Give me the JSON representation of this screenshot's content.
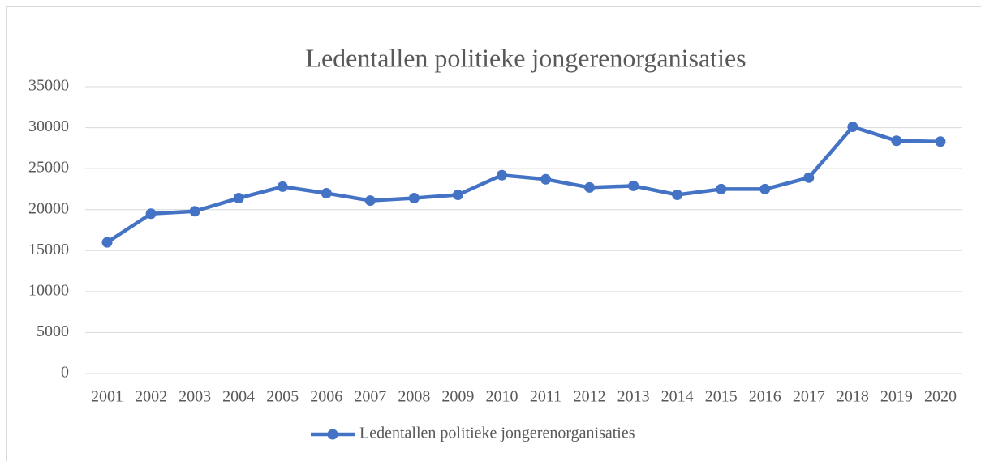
{
  "chart_data": {
    "type": "line",
    "title": "Ledentallen politieke jongerenorganisaties",
    "categories": [
      "2001",
      "2002",
      "2003",
      "2004",
      "2005",
      "2006",
      "2007",
      "2008",
      "2009",
      "2010",
      "2011",
      "2012",
      "2013",
      "2014",
      "2015",
      "2016",
      "2017",
      "2018",
      "2019",
      "2020"
    ],
    "series": [
      {
        "name": "Ledentallen politieke jongerenorganisaties",
        "color": "#4472c4",
        "values": [
          16000,
          19500,
          19800,
          21400,
          22800,
          22000,
          21100,
          21400,
          21800,
          24200,
          23700,
          22700,
          22900,
          21800,
          22500,
          22500,
          23900,
          30100,
          28400,
          28300
        ]
      }
    ],
    "ylim": [
      0,
      35000
    ],
    "yticks": [
      0,
      5000,
      10000,
      15000,
      20000,
      25000,
      30000,
      35000
    ],
    "grid": true,
    "legend": "bottom"
  }
}
